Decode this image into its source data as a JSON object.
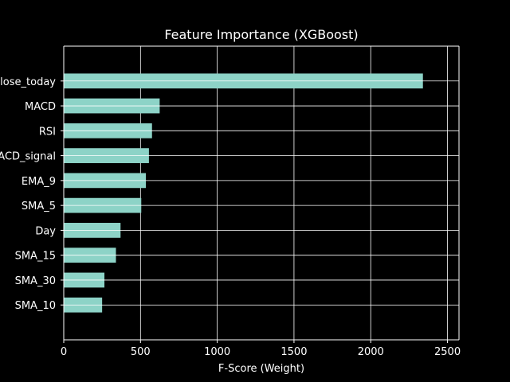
{
  "chart_data": {
    "type": "bar",
    "orientation": "horizontal",
    "title": "Feature Importance (XGBoost)",
    "xlabel": "F-Score (Weight)",
    "ylabel": "",
    "categories": [
      "SMA_10",
      "SMA_30",
      "SMA_15",
      "Day",
      "SMA_5",
      "EMA_9",
      "MACD_signal",
      "RSI",
      "MACD",
      "Close_today"
    ],
    "values": [
      250,
      265,
      340,
      370,
      505,
      535,
      555,
      575,
      625,
      2340
    ],
    "xlim": [
      0,
      2575
    ],
    "xticks": [
      0,
      500,
      1000,
      1500,
      2000,
      2500
    ],
    "grid": true,
    "bar_color": "#8dd3c7",
    "background_color": "#000000",
    "text_color": "#ffffff"
  }
}
